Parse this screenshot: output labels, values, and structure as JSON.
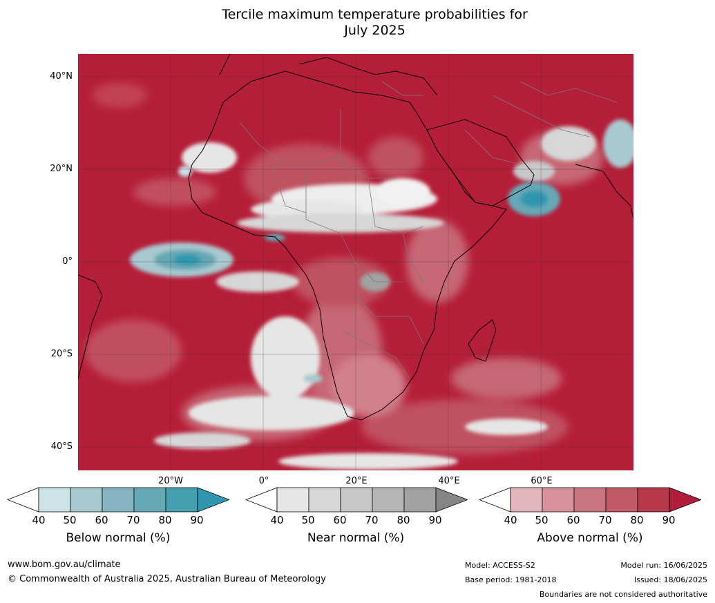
{
  "title_line1": "Tercile maximum temperature probabilities for",
  "title_line2": "July 2025",
  "map": {
    "lat_labels": [
      "40°N",
      "20°N",
      "0°",
      "20°S",
      "40°S"
    ],
    "lon_labels": [
      "20°W",
      "0°",
      "20°E",
      "40°E",
      "60°E"
    ],
    "extent": {
      "lon_min": -30,
      "lon_max": 70,
      "lat_min": -45,
      "lat_max": 45
    },
    "dominant_category": "Above normal",
    "colors": {
      "ocean_above": "#b51e38",
      "land_outline": "#000000",
      "border": "#7a7a7a",
      "grid": "#333333"
    }
  },
  "legend": {
    "below": {
      "label": "Below normal (%)",
      "ticks": [
        "40",
        "50",
        "60",
        "70",
        "80",
        "90"
      ],
      "colors": [
        "#ffffff",
        "#cde3e8",
        "#a8c9d0",
        "#86b5c1",
        "#66a8b6",
        "#449fb0",
        "#2f97af"
      ]
    },
    "near": {
      "label": "Near normal (%)",
      "ticks": [
        "40",
        "50",
        "60",
        "70",
        "80",
        "90"
      ],
      "colors": [
        "#ffffff",
        "#e6e6e6",
        "#d7d7d7",
        "#c8c8c8",
        "#b6b6b6",
        "#a2a2a2",
        "#858585"
      ]
    },
    "above": {
      "label": "Above normal (%)",
      "ticks": [
        "40",
        "50",
        "60",
        "70",
        "80",
        "90"
      ],
      "colors": [
        "#ffffff",
        "#e3b6bc",
        "#d8929b",
        "#c97580",
        "#c15a67",
        "#b7384b",
        "#b21d3b"
      ]
    }
  },
  "footer": {
    "url": "www.bom.gov.au/climate",
    "copyright": "© Commonwealth of Australia 2025, Australian Bureau of Meteorology",
    "model": "Model: ACCESS-S2",
    "base_period": "Base period: 1981-2018",
    "model_run": "Model run: 16/06/2025",
    "issued": "Issued: 18/06/2025",
    "disclaimer": "Boundaries are not considered authoritative"
  }
}
